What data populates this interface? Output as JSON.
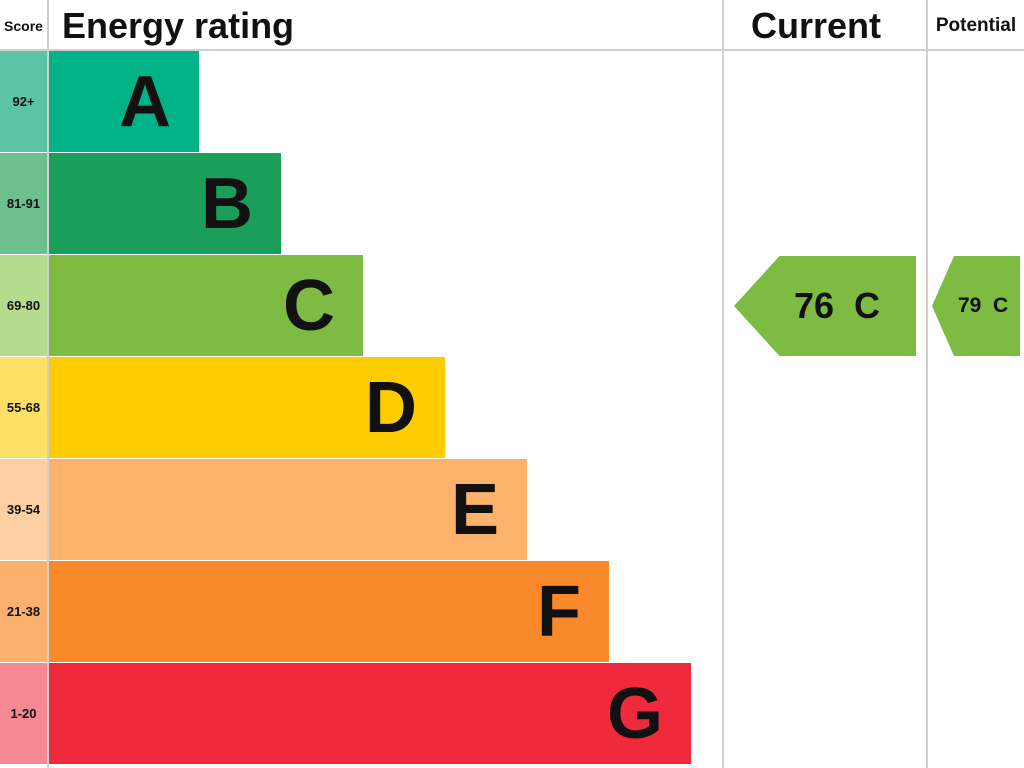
{
  "chart_data": {
    "type": "bar",
    "columns": {
      "score": "Score",
      "rating": "Energy rating",
      "current": "Current",
      "potential": "Potential"
    },
    "bands": [
      {
        "letter": "A",
        "range": "92+",
        "color": "#00b386",
        "light": "#5cc4a6"
      },
      {
        "letter": "B",
        "range": "81-91",
        "color": "#1a9e5a",
        "light": "#6dbf8e"
      },
      {
        "letter": "C",
        "range": "69-80",
        "color": "#7dbb42",
        "light": "#b5dc8e"
      },
      {
        "letter": "D",
        "range": "55-68",
        "color": "#ffcc00",
        "light": "#ffe066"
      },
      {
        "letter": "E",
        "range": "39-54",
        "color": "#fcb26a",
        "light": "#fdd0a4"
      },
      {
        "letter": "F",
        "range": "21-38",
        "color": "#f9892a",
        "light": "#fbb06e"
      },
      {
        "letter": "G",
        "range": "1-20",
        "color": "#ef2a3d",
        "light": "#f58892"
      }
    ],
    "current": {
      "value": 76,
      "band": "C",
      "label": "76  C"
    },
    "potential": {
      "value": 79,
      "band": "C",
      "label": "79  C"
    },
    "arrow_color": "#7dbb42"
  }
}
